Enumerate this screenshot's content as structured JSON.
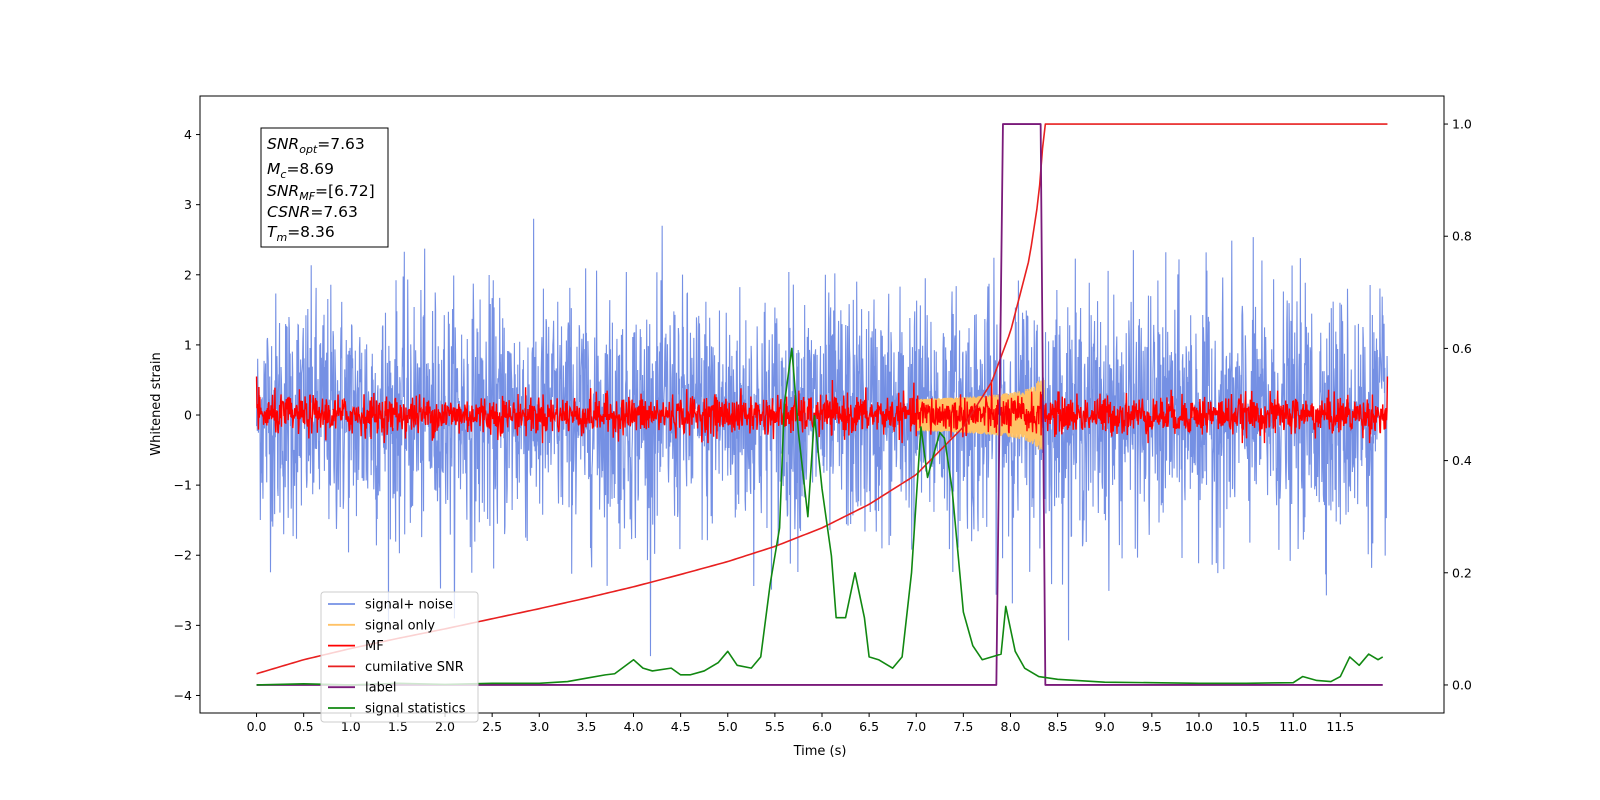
{
  "chart_data": {
    "type": "line",
    "title": "",
    "xlabel": "Time (s)",
    "ylabel": "Whitened strain",
    "xlim": [
      -0.6,
      12.6
    ],
    "ylim": [
      -4.25,
      4.55
    ],
    "y2lim": [
      -0.05,
      1.05
    ],
    "x_ticks": [
      0.0,
      0.5,
      1.0,
      1.5,
      2.0,
      2.5,
      3.0,
      3.5,
      4.0,
      4.5,
      5.0,
      5.5,
      6.0,
      6.5,
      7.0,
      7.5,
      8.0,
      8.5,
      9.0,
      9.5,
      10.0,
      10.5,
      11.0,
      11.5
    ],
    "x_tick_labels": [
      "0.0",
      "0.5",
      "1.0",
      "1.5",
      "2.0",
      "2.5",
      "3.0",
      "3.5",
      "4.0",
      "4.5",
      "5.0",
      "5.5",
      "6.0",
      "6.5",
      "7.0",
      "7.5",
      "8.0",
      "8.5",
      "9.0",
      "9.5",
      "10.0",
      "10.5",
      "11.0",
      "11.5"
    ],
    "y_ticks": [
      -4,
      -3,
      -2,
      -1,
      0,
      1,
      2,
      3,
      4
    ],
    "y_tick_labels": [
      "−4",
      "−3",
      "−2",
      "−1",
      "0",
      "1",
      "2",
      "3",
      "4"
    ],
    "y2_ticks": [
      0.0,
      0.2,
      0.4,
      0.6,
      0.8,
      1.0
    ],
    "y2_tick_labels": [
      "0.0",
      "0.2",
      "0.4",
      "0.6",
      "0.8",
      "1.0"
    ],
    "legend_position": "lower-left",
    "series": [
      {
        "name": "signal+ noise",
        "color": "#7590e4",
        "axis": "left",
        "style": "noise band",
        "x_range": [
          0.0,
          12.0
        ],
        "approx_range": [
          -4.0,
          4.2
        ],
        "typical_std": 0.9
      },
      {
        "name": "signal only",
        "color": "#ffc266",
        "axis": "left",
        "style": "chirp",
        "peak_x": 8.36,
        "peak_amplitude": 0.5
      },
      {
        "name": "MF",
        "color": "#ff0000",
        "axis": "left",
        "style": "noise band",
        "x_range": [
          0.0,
          12.0
        ],
        "typical_std": 0.14
      },
      {
        "name": "cumilative SNR",
        "color": "#e82020",
        "axis": "right",
        "x": [
          0.0,
          0.5,
          1.0,
          1.5,
          2.0,
          2.5,
          3.0,
          3.5,
          4.0,
          4.5,
          5.0,
          5.5,
          6.0,
          6.5,
          7.0,
          7.5,
          7.8,
          8.0,
          8.2,
          8.3,
          8.36,
          9.0,
          10.0,
          11.0,
          11.5,
          12.0
        ],
        "values": [
          0.02,
          0.045,
          0.065,
          0.083,
          0.1,
          0.118,
          0.136,
          0.155,
          0.175,
          0.197,
          0.22,
          0.247,
          0.28,
          0.322,
          0.375,
          0.46,
          0.54,
          0.63,
          0.76,
          0.87,
          1.0,
          1.0,
          1.0,
          1.0,
          1.0,
          1.0
        ]
      },
      {
        "name": "label",
        "color": "#7a1a7a",
        "axis": "right",
        "x": [
          0.0,
          7.85,
          7.92,
          8.32,
          8.37,
          11.95
        ],
        "values": [
          0.0,
          0.0,
          1.0,
          1.0,
          0.0,
          0.0
        ]
      },
      {
        "name": "signal statistics",
        "color": "#118811",
        "axis": "right",
        "x": [
          0.0,
          0.5,
          1.0,
          1.5,
          2.0,
          2.5,
          3.0,
          3.3,
          3.5,
          3.7,
          3.8,
          4.0,
          4.1,
          4.2,
          4.4,
          4.5,
          4.6,
          4.75,
          4.9,
          5.0,
          5.1,
          5.25,
          5.35,
          5.45,
          5.55,
          5.6,
          5.68,
          5.75,
          5.85,
          5.92,
          6.0,
          6.1,
          6.15,
          6.25,
          6.35,
          6.45,
          6.5,
          6.6,
          6.75,
          6.85,
          6.95,
          7.05,
          7.12,
          7.2,
          7.25,
          7.3,
          7.38,
          7.5,
          7.6,
          7.7,
          7.9,
          7.95,
          8.05,
          8.15,
          8.3,
          8.5,
          9.0,
          10.0,
          10.5,
          11.0,
          11.1,
          11.25,
          11.4,
          11.5,
          11.6,
          11.7,
          11.8,
          11.9,
          11.95
        ],
        "values": [
          0.0,
          0.002,
          0.0,
          0.003,
          0.001,
          0.003,
          0.003,
          0.006,
          0.012,
          0.018,
          0.02,
          0.045,
          0.03,
          0.025,
          0.03,
          0.018,
          0.018,
          0.025,
          0.04,
          0.06,
          0.035,
          0.03,
          0.05,
          0.18,
          0.28,
          0.5,
          0.6,
          0.45,
          0.3,
          0.48,
          0.35,
          0.23,
          0.12,
          0.12,
          0.2,
          0.12,
          0.05,
          0.045,
          0.03,
          0.05,
          0.2,
          0.46,
          0.37,
          0.42,
          0.45,
          0.44,
          0.35,
          0.13,
          0.07,
          0.045,
          0.055,
          0.14,
          0.06,
          0.03,
          0.015,
          0.01,
          0.005,
          0.003,
          0.003,
          0.004,
          0.015,
          0.008,
          0.006,
          0.015,
          0.05,
          0.035,
          0.055,
          0.045,
          0.05
        ]
      }
    ]
  },
  "info_box": {
    "snr_opt": {
      "base": "SNR",
      "sub": "opt",
      "value": "=7.63"
    },
    "mc": {
      "base": "M",
      "sub": "c",
      "value": "=8.69"
    },
    "snr_mf": {
      "base": "SNR",
      "sub": "MF",
      "value": "=[6.72]"
    },
    "csnr": {
      "base": "CSNR",
      "value": "=7.63"
    },
    "tm": {
      "base": "T",
      "sub": "m",
      "value": "=8.36"
    }
  },
  "legend": [
    {
      "label": "signal+ noise",
      "color": "#7590e4"
    },
    {
      "label": "signal only",
      "color": "#ffc266"
    },
    {
      "label": "MF",
      "color": "#ff0000"
    },
    {
      "label": "cumilative SNR",
      "color": "#e82020"
    },
    {
      "label": "label",
      "color": "#7a1a7a"
    },
    {
      "label": "signal statistics",
      "color": "#118811"
    }
  ]
}
